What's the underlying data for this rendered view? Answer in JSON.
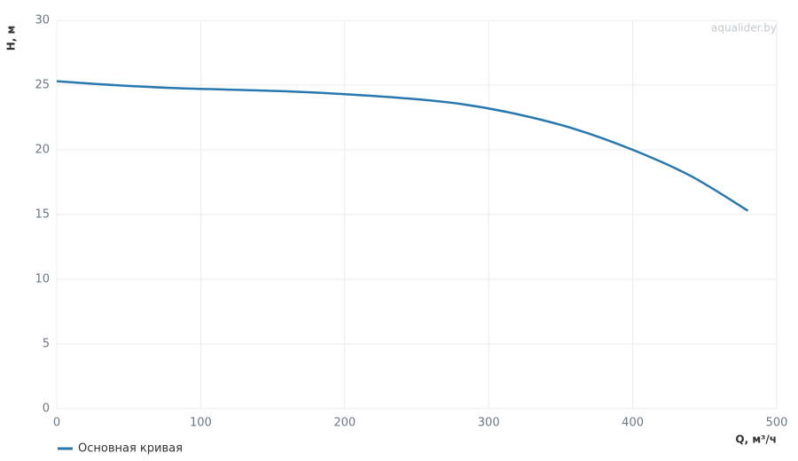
{
  "chart_data": {
    "type": "line",
    "watermark": "aqualider.by",
    "x_label": "Q, м³/ч",
    "y_label": "H, м",
    "x": [
      0,
      40,
      80,
      120,
      160,
      200,
      240,
      280,
      320,
      360,
      400,
      440,
      480
    ],
    "series": [
      {
        "name": "Основная кривая",
        "color": "#2878b0",
        "values": [
          25.3,
          25.0,
          24.78,
          24.65,
          24.52,
          24.3,
          24.0,
          23.55,
          22.75,
          21.6,
          20.0,
          18.0,
          15.3
        ]
      }
    ],
    "xlim": [
      0,
      500
    ],
    "xticks": [
      0,
      100,
      200,
      300,
      400,
      500
    ],
    "ylim": [
      0,
      30
    ],
    "yticks": [
      0,
      5,
      10,
      15,
      20,
      25,
      30
    ],
    "grid": true,
    "legend": "bottom-left"
  }
}
